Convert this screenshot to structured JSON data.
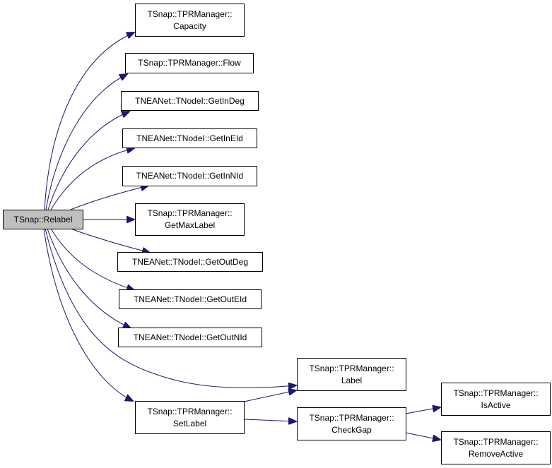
{
  "colors": {
    "edge": "#191970",
    "root_fill": "#bfbfbf",
    "node_fill": "#ffffff"
  },
  "nodes": {
    "relabel": [
      "TSnap::Relabel"
    ],
    "capacity": [
      "TSnap::TPRManager::",
      "Capacity"
    ],
    "flow": [
      "TSnap::TPRManager::Flow"
    ],
    "getindeg": [
      "TNEANet::TNodeI::GetInDeg"
    ],
    "getineid": [
      "TNEANet::TNodeI::GetInEId"
    ],
    "getinnid": [
      "TNEANet::TNodeI::GetInNId"
    ],
    "getmaxlabel": [
      "TSnap::TPRManager::",
      "GetMaxLabel"
    ],
    "getoutdeg": [
      "TNEANet::TNodeI::GetOutDeg"
    ],
    "getouteid": [
      "TNEANet::TNodeI::GetOutEId"
    ],
    "getoutnid": [
      "TNEANet::TNodeI::GetOutNId"
    ],
    "label": [
      "TSnap::TPRManager::",
      "Label"
    ],
    "setlabel": [
      "TSnap::TPRManager::",
      "SetLabel"
    ],
    "checkgap": [
      "TSnap::TPRManager::",
      "CheckGap"
    ],
    "isactive": [
      "TSnap::TPRManager::",
      "IsActive"
    ],
    "removeactive": [
      "TSnap::TPRManager::",
      "RemoveActive"
    ]
  },
  "edges": [
    [
      "relabel",
      "capacity"
    ],
    [
      "relabel",
      "flow"
    ],
    [
      "relabel",
      "getindeg"
    ],
    [
      "relabel",
      "getineid"
    ],
    [
      "relabel",
      "getinnid"
    ],
    [
      "relabel",
      "getmaxlabel"
    ],
    [
      "relabel",
      "getoutdeg"
    ],
    [
      "relabel",
      "getouteid"
    ],
    [
      "relabel",
      "getoutnid"
    ],
    [
      "relabel",
      "label"
    ],
    [
      "relabel",
      "setlabel"
    ],
    [
      "setlabel",
      "label"
    ],
    [
      "setlabel",
      "checkgap"
    ],
    [
      "checkgap",
      "isactive"
    ],
    [
      "checkgap",
      "removeactive"
    ]
  ]
}
